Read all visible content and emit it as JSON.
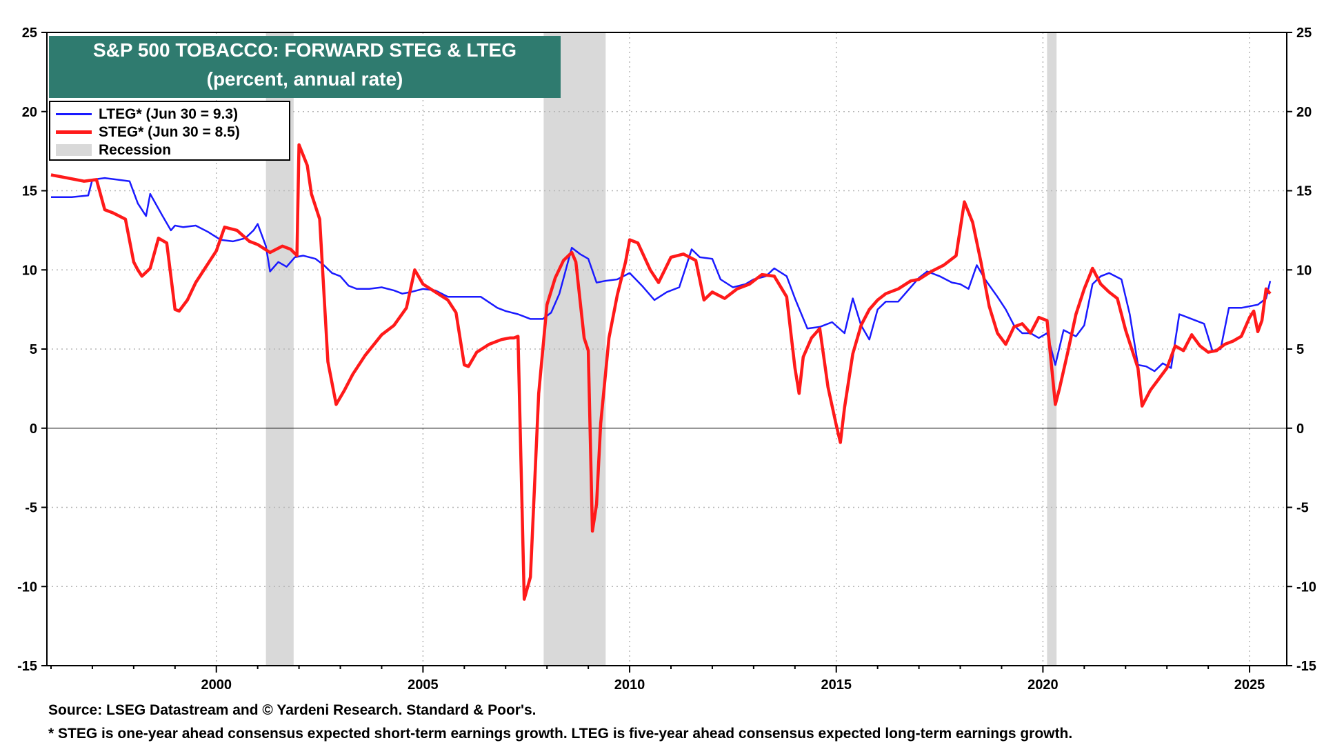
{
  "chart_data": {
    "type": "line",
    "title": "S&P 500 TOBACCO: FORWARD STEG & LTEG",
    "subtitle": "(percent, annual rate)",
    "ylim": [
      -15,
      25
    ],
    "y_ticks": [
      25,
      20,
      15,
      10,
      5,
      0,
      -5,
      -10,
      -15
    ],
    "x_ticks": [
      2000,
      2005,
      2010,
      2015,
      2020,
      2025
    ],
    "xlim": [
      1995.9,
      2025.9
    ],
    "grid": true,
    "legend_position": "top-left",
    "series": [
      {
        "name": "LTEG* (Jun 30 = 9.3)",
        "color": "#1a1aff",
        "x": [
          1996.0,
          1996.5,
          1996.9,
          1997.0,
          1997.3,
          1997.6,
          1997.9,
          1998.1,
          1998.3,
          1998.4,
          1998.7,
          1998.9,
          1999.0,
          1999.2,
          1999.5,
          1999.8,
          2000.1,
          2000.4,
          2000.7,
          2000.9,
          2001.0,
          2001.2,
          2001.3,
          2001.5,
          2001.7,
          2001.9,
          2002.1,
          2002.4,
          2002.6,
          2002.8,
          2003.0,
          2003.2,
          2003.4,
          2003.7,
          2004.0,
          2004.3,
          2004.5,
          2004.7,
          2005.0,
          2005.3,
          2005.6,
          2006.0,
          2006.4,
          2006.8,
          2007.0,
          2007.3,
          2007.6,
          2007.9,
          2008.1,
          2008.3,
          2008.6,
          2008.8,
          2009.0,
          2009.2,
          2009.4,
          2009.7,
          2010.0,
          2010.3,
          2010.6,
          2010.9,
          2011.2,
          2011.5,
          2011.7,
          2012.0,
          2012.2,
          2012.5,
          2012.8,
          2013.0,
          2013.3,
          2013.5,
          2013.8,
          2014.0,
          2014.3,
          2014.6,
          2014.9,
          2015.2,
          2015.4,
          2015.6,
          2015.8,
          2016.0,
          2016.2,
          2016.5,
          2016.8,
          2017.0,
          2017.2,
          2017.5,
          2017.8,
          2018.0,
          2018.2,
          2018.4,
          2018.6,
          2018.9,
          2019.1,
          2019.3,
          2019.5,
          2019.7,
          2019.9,
          2020.1,
          2020.3,
          2020.5,
          2020.8,
          2021.0,
          2021.2,
          2021.4,
          2021.6,
          2021.9,
          2022.1,
          2022.3,
          2022.5,
          2022.7,
          2022.9,
          2023.1,
          2023.3,
          2023.6,
          2023.9,
          2024.1,
          2024.3,
          2024.5,
          2024.8,
          2025.0,
          2025.2,
          2025.4,
          2025.5
        ],
        "values": [
          14.6,
          14.6,
          14.7,
          15.7,
          15.8,
          15.7,
          15.6,
          14.2,
          13.4,
          14.8,
          13.4,
          12.5,
          12.8,
          12.7,
          12.8,
          12.4,
          11.9,
          11.8,
          12.0,
          12.5,
          12.9,
          11.5,
          9.9,
          10.5,
          10.2,
          10.8,
          10.9,
          10.7,
          10.3,
          9.8,
          9.6,
          9.0,
          8.8,
          8.8,
          8.9,
          8.7,
          8.5,
          8.6,
          8.8,
          8.7,
          8.3,
          8.3,
          8.3,
          7.6,
          7.4,
          7.2,
          6.9,
          6.9,
          7.3,
          8.5,
          11.4,
          11.0,
          10.7,
          9.2,
          9.3,
          9.4,
          9.8,
          9.0,
          8.1,
          8.6,
          8.9,
          11.3,
          10.8,
          10.7,
          9.4,
          8.9,
          9.1,
          9.4,
          9.6,
          10.1,
          9.6,
          8.2,
          6.3,
          6.4,
          6.7,
          6.0,
          8.2,
          6.5,
          5.6,
          7.5,
          8.0,
          8.0,
          8.9,
          9.5,
          9.9,
          9.6,
          9.2,
          9.1,
          8.8,
          10.3,
          9.4,
          8.3,
          7.5,
          6.5,
          6.0,
          6.0,
          5.7,
          6.0,
          4.0,
          6.2,
          5.8,
          6.5,
          9.1,
          9.6,
          9.8,
          9.4,
          7.2,
          4.0,
          3.9,
          3.6,
          4.1,
          3.8,
          7.2,
          6.9,
          6.6,
          4.9,
          5.0,
          7.6,
          7.6,
          7.7,
          7.8,
          8.2,
          9.3
        ]
      },
      {
        "name": "STEG* (Jun 30 = 8.5)",
        "color": "#ff1a1a",
        "x": [
          1996.0,
          1996.4,
          1996.8,
          1997.1,
          1997.3,
          1997.5,
          1997.8,
          1998.0,
          1998.1,
          1998.2,
          1998.4,
          1998.6,
          1998.8,
          1999.0,
          1999.1,
          1999.3,
          1999.5,
          1999.8,
          2000.0,
          2000.2,
          2000.5,
          2000.8,
          2001.0,
          2001.3,
          2001.6,
          2001.8,
          2001.95,
          2002.0,
          2002.2,
          2002.3,
          2002.5,
          2002.7,
          2002.9,
          2003.1,
          2003.3,
          2003.6,
          2004.0,
          2004.3,
          2004.6,
          2004.8,
          2005.0,
          2005.3,
          2005.6,
          2005.8,
          2006.0,
          2006.1,
          2006.3,
          2006.6,
          2006.9,
          2007.1,
          2007.2,
          2007.3,
          2007.45,
          2007.6,
          2007.8,
          2008.0,
          2008.2,
          2008.4,
          2008.6,
          2008.7,
          2008.8,
          2008.9,
          2009.0,
          2009.1,
          2009.2,
          2009.3,
          2009.5,
          2009.7,
          2009.9,
          2010.0,
          2010.2,
          2010.5,
          2010.7,
          2011.0,
          2011.3,
          2011.6,
          2011.8,
          2012.0,
          2012.3,
          2012.6,
          2012.9,
          2013.2,
          2013.5,
          2013.8,
          2014.0,
          2014.1,
          2014.2,
          2014.4,
          2014.6,
          2014.8,
          2015.0,
          2015.1,
          2015.2,
          2015.4,
          2015.6,
          2015.8,
          2016.0,
          2016.2,
          2016.5,
          2016.8,
          2017.0,
          2017.3,
          2017.6,
          2017.9,
          2018.1,
          2018.3,
          2018.5,
          2018.7,
          2018.9,
          2019.1,
          2019.3,
          2019.5,
          2019.7,
          2019.9,
          2020.1,
          2020.3,
          2020.4,
          2020.6,
          2020.8,
          2021.0,
          2021.2,
          2021.4,
          2021.6,
          2021.8,
          2022.0,
          2022.2,
          2022.3,
          2022.4,
          2022.6,
          2022.8,
          2023.0,
          2023.2,
          2023.4,
          2023.6,
          2023.8,
          2024.0,
          2024.2,
          2024.4,
          2024.6,
          2024.8,
          2025.0,
          2025.1,
          2025.2,
          2025.3,
          2025.4,
          2025.5
        ],
        "values": [
          16.0,
          15.8,
          15.6,
          15.7,
          13.8,
          13.6,
          13.2,
          10.5,
          10.0,
          9.6,
          10.1,
          12.0,
          11.7,
          7.5,
          7.4,
          8.1,
          9.2,
          10.4,
          11.2,
          12.7,
          12.5,
          11.8,
          11.6,
          11.1,
          11.5,
          11.3,
          10.9,
          17.9,
          16.6,
          14.8,
          13.2,
          4.2,
          1.5,
          2.4,
          3.4,
          4.6,
          5.9,
          6.5,
          7.6,
          10.0,
          9.1,
          8.6,
          8.1,
          7.3,
          4.0,
          3.9,
          4.8,
          5.3,
          5.6,
          5.7,
          5.7,
          5.8,
          -10.8,
          -9.4,
          2.2,
          7.8,
          9.5,
          10.6,
          11.1,
          10.5,
          8.1,
          5.7,
          4.9,
          -6.5,
          -4.8,
          0.3,
          5.7,
          8.4,
          10.5,
          11.9,
          11.7,
          10.0,
          9.2,
          10.8,
          11.0,
          10.6,
          8.1,
          8.6,
          8.2,
          8.8,
          9.1,
          9.7,
          9.6,
          8.3,
          3.8,
          2.2,
          4.5,
          5.7,
          6.3,
          2.6,
          0.2,
          -0.9,
          1.3,
          4.7,
          6.5,
          7.5,
          8.1,
          8.5,
          8.8,
          9.3,
          9.4,
          9.9,
          10.3,
          10.9,
          14.3,
          13.0,
          10.5,
          7.7,
          6.0,
          5.3,
          6.4,
          6.6,
          6.0,
          7.0,
          6.8,
          1.5,
          2.5,
          4.8,
          7.2,
          8.8,
          10.1,
          9.1,
          8.6,
          8.2,
          6.2,
          4.6,
          3.8,
          1.4,
          2.4,
          3.1,
          3.8,
          5.2,
          4.9,
          5.9,
          5.2,
          4.8,
          4.9,
          5.3,
          5.5,
          5.8,
          7.0,
          7.4,
          6.1,
          6.8,
          8.8,
          8.5
        ]
      }
    ],
    "recessions": [
      [
        2001.2,
        2001.87
      ],
      [
        2007.92,
        2009.42
      ],
      [
        2020.1,
        2020.33
      ]
    ]
  },
  "legend": {
    "lteg": "LTEG* (Jun 30 = 9.3)",
    "steg": "STEG* (Jun 30 = 8.5)",
    "recession": "Recession"
  },
  "footer": {
    "source": "Source: LSEG Datastream and © Yardeni Research. Standard & Poor's.",
    "note": "* STEG is one-year ahead consensus expected short-term earnings growth. LTEG is five-year ahead consensus expected long-term earnings growth."
  },
  "colors": {
    "title_bg": "#2f7b6f",
    "lteg": "#1a1aff",
    "steg": "#ff1a1a",
    "recession": "#d9d9d9"
  }
}
